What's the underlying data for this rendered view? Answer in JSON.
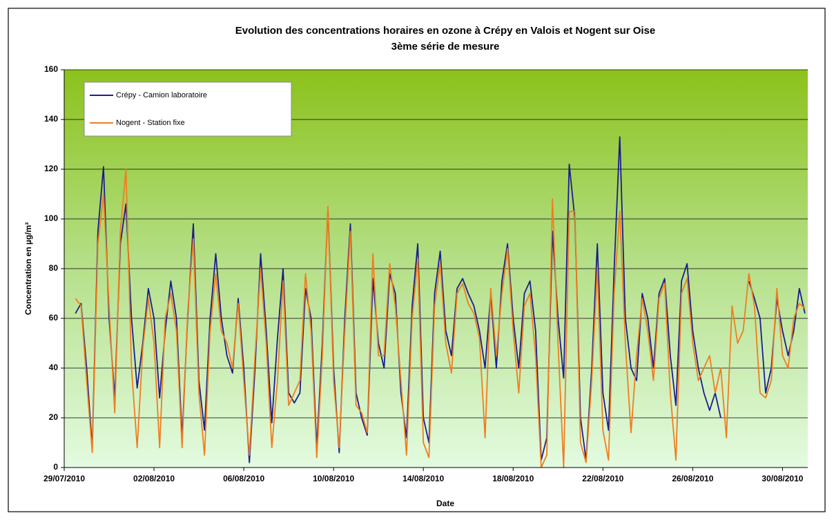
{
  "chart_data": {
    "type": "line",
    "title": "Evolution des concentrations horaires en ozone à Crépy en Valois et Nogent sur Oise",
    "subtitle": "3ème série de mesure",
    "x_label": "Date",
    "y_label": "Concentration en µg/m³",
    "x": [
      "29/07/2010 12:00",
      "29/07/2010 18:00",
      "30/07/2010 00:00",
      "30/07/2010 06:00",
      "30/07/2010 12:00",
      "30/07/2010 18:00",
      "31/07/2010 00:00",
      "31/07/2010 06:00",
      "31/07/2010 12:00",
      "31/07/2010 18:00",
      "01/08/2010 00:00",
      "01/08/2010 06:00",
      "01/08/2010 12:00",
      "01/08/2010 18:00",
      "02/08/2010 00:00",
      "02/08/2010 06:00",
      "02/08/2010 12:00",
      "02/08/2010 18:00",
      "03/08/2010 00:00",
      "03/08/2010 06:00",
      "03/08/2010 12:00",
      "03/08/2010 18:00",
      "04/08/2010 00:00",
      "04/08/2010 06:00",
      "04/08/2010 12:00",
      "04/08/2010 18:00",
      "05/08/2010 00:00",
      "05/08/2010 06:00",
      "05/08/2010 12:00",
      "05/08/2010 18:00",
      "06/08/2010 00:00",
      "06/08/2010 06:00",
      "06/08/2010 12:00",
      "06/08/2010 18:00",
      "07/08/2010 00:00",
      "07/08/2010 06:00",
      "07/08/2010 12:00",
      "07/08/2010 18:00",
      "08/08/2010 00:00",
      "08/08/2010 06:00",
      "08/08/2010 12:00",
      "08/08/2010 18:00",
      "09/08/2010 00:00",
      "09/08/2010 06:00",
      "09/08/2010 12:00",
      "09/08/2010 18:00",
      "10/08/2010 00:00",
      "10/08/2010 06:00",
      "10/08/2010 12:00",
      "10/08/2010 18:00",
      "11/08/2010 00:00",
      "11/08/2010 06:00",
      "11/08/2010 12:00",
      "11/08/2010 18:00",
      "12/08/2010 00:00",
      "12/08/2010 06:00",
      "12/08/2010 12:00",
      "12/08/2010 18:00",
      "13/08/2010 00:00",
      "13/08/2010 06:00",
      "13/08/2010 12:00",
      "13/08/2010 18:00",
      "14/08/2010 00:00",
      "14/08/2010 06:00",
      "14/08/2010 12:00",
      "14/08/2010 18:00",
      "15/08/2010 00:00",
      "15/08/2010 06:00",
      "15/08/2010 12:00",
      "15/08/2010 18:00",
      "16/08/2010 00:00",
      "16/08/2010 06:00",
      "16/08/2010 12:00",
      "16/08/2010 18:00",
      "17/08/2010 00:00",
      "17/08/2010 06:00",
      "17/08/2010 12:00",
      "17/08/2010 18:00",
      "18/08/2010 00:00",
      "18/08/2010 06:00",
      "18/08/2010 12:00",
      "18/08/2010 18:00",
      "19/08/2010 00:00",
      "19/08/2010 06:00",
      "19/08/2010 12:00",
      "19/08/2010 18:00",
      "20/08/2010 00:00",
      "20/08/2010 06:00",
      "20/08/2010 12:00",
      "20/08/2010 18:00",
      "21/08/2010 00:00",
      "21/08/2010 06:00",
      "21/08/2010 12:00",
      "21/08/2010 18:00",
      "22/08/2010 00:00",
      "22/08/2010 06:00",
      "22/08/2010 12:00",
      "22/08/2010 18:00",
      "23/08/2010 00:00",
      "23/08/2010 06:00",
      "23/08/2010 12:00",
      "23/08/2010 18:00",
      "24/08/2010 00:00",
      "24/08/2010 06:00",
      "24/08/2010 12:00",
      "24/08/2010 18:00",
      "25/08/2010 00:00",
      "25/08/2010 06:00",
      "25/08/2010 12:00",
      "25/08/2010 18:00",
      "26/08/2010 00:00",
      "26/08/2010 06:00",
      "26/08/2010 12:00",
      "26/08/2010 18:00",
      "27/08/2010 00:00",
      "27/08/2010 06:00",
      "27/08/2010 12:00",
      "27/08/2010 18:00",
      "28/08/2010 00:00",
      "28/08/2010 06:00",
      "28/08/2010 12:00",
      "28/08/2010 18:00",
      "29/08/2010 00:00",
      "29/08/2010 06:00",
      "29/08/2010 12:00",
      "29/08/2010 18:00",
      "30/08/2010 00:00",
      "30/08/2010 06:00",
      "30/08/2010 12:00",
      "30/08/2010 18:00",
      "31/08/2010 00:00"
    ],
    "series": [
      {
        "name": "Crépy - Camion laboratoire",
        "color": "#1c1c8c",
        "values": [
          62,
          66,
          40,
          8,
          95,
          121,
          60,
          28,
          90,
          106,
          60,
          32,
          50,
          72,
          60,
          28,
          55,
          75,
          60,
          12,
          60,
          98,
          35,
          15,
          60,
          86,
          60,
          45,
          38,
          68,
          40,
          2,
          40,
          86,
          55,
          18,
          52,
          80,
          30,
          26,
          30,
          72,
          60,
          8,
          50,
          104,
          40,
          6,
          60,
          98,
          30,
          20,
          13,
          76,
          50,
          40,
          78,
          70,
          30,
          12,
          65,
          90,
          20,
          10,
          70,
          87,
          55,
          45,
          72,
          76,
          70,
          65,
          55,
          40,
          70,
          40,
          75,
          90,
          60,
          40,
          70,
          75,
          55,
          3,
          12,
          95,
          60,
          36,
          122,
          100,
          20,
          3,
          40,
          90,
          30,
          15,
          80,
          133,
          60,
          40,
          35,
          70,
          60,
          40,
          70,
          76,
          45,
          25,
          75,
          82,
          55,
          40,
          30,
          23,
          30,
          20,
          null,
          null,
          null,
          null,
          75,
          68,
          60,
          30,
          40,
          68,
          55,
          45,
          55,
          72,
          62
        ]
      },
      {
        "name": "Nogent - Station fixe",
        "color": "#f07d1e",
        "values": [
          68,
          65,
          35,
          6,
          90,
          110,
          65,
          22,
          95,
          120,
          40,
          8,
          48,
          68,
          50,
          8,
          60,
          70,
          55,
          8,
          62,
          92,
          30,
          5,
          55,
          78,
          55,
          50,
          40,
          66,
          35,
          5,
          45,
          80,
          50,
          8,
          35,
          75,
          25,
          30,
          35,
          78,
          55,
          4,
          45,
          105,
          35,
          8,
          55,
          95,
          25,
          22,
          14,
          86,
          45,
          45,
          82,
          65,
          35,
          5,
          60,
          84,
          10,
          4,
          65,
          82,
          50,
          38,
          70,
          74,
          66,
          62,
          52,
          12,
          72,
          45,
          70,
          88,
          55,
          30,
          65,
          70,
          45,
          0,
          5,
          108,
          50,
          0,
          103,
          103,
          10,
          2,
          35,
          80,
          15,
          3,
          70,
          103,
          50,
          14,
          45,
          68,
          55,
          35,
          68,
          74,
          30,
          3,
          70,
          76,
          50,
          35,
          40,
          45,
          30,
          40,
          12,
          65,
          50,
          55,
          78,
          65,
          30,
          28,
          35,
          72,
          45,
          40,
          60,
          66,
          64
        ]
      }
    ],
    "xlim": [
      "29/07/2010 00:00",
      "31/08/2010 03:00"
    ],
    "xticks": [
      "29/07/2010",
      "02/08/2010",
      "06/08/2010",
      "10/08/2010",
      "14/08/2010",
      "18/08/2010",
      "22/08/2010",
      "26/08/2010",
      "30/08/2010"
    ],
    "ylim": [
      0,
      160
    ],
    "yticks": [
      0,
      20,
      40,
      60,
      80,
      100,
      120,
      140,
      160
    ],
    "grid": true,
    "legend": "upper left"
  }
}
